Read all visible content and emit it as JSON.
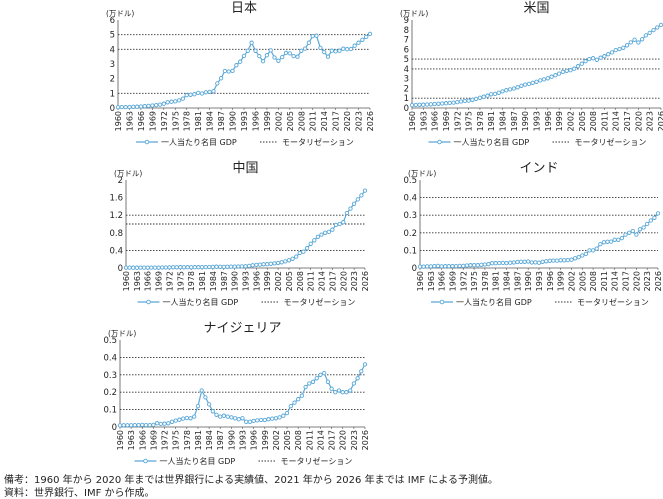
{
  "chart_data": [
    {
      "type": "line",
      "title": "日本",
      "ylabel": "(万ドル)",
      "ylim": [
        0,
        6
      ],
      "yticks": [
        0,
        1,
        2,
        3,
        4,
        5,
        6
      ],
      "x_ticks": [
        "1960",
        "1963",
        "1966",
        "1969",
        "1972",
        "1975",
        "1978",
        "1981",
        "1984",
        "1987",
        "1990",
        "1993",
        "1996",
        "1999",
        "2002",
        "2005",
        "2008",
        "2011",
        "2014",
        "2017",
        "2020",
        "2023",
        "2026"
      ],
      "x_range": [
        1960,
        2026
      ],
      "grid": true,
      "legend_position": "bottom",
      "series": [
        {
          "name": "一人当たり名目 GDP",
          "x_start": 1960,
          "values": [
            0.05,
            0.06,
            0.06,
            0.07,
            0.08,
            0.09,
            0.1,
            0.12,
            0.14,
            0.17,
            0.2,
            0.23,
            0.29,
            0.39,
            0.43,
            0.45,
            0.52,
            0.64,
            0.88,
            0.9,
            0.94,
            1.03,
            0.99,
            1.07,
            1.1,
            1.14,
            1.68,
            2.03,
            2.52,
            2.49,
            2.53,
            2.92,
            3.16,
            3.55,
            3.9,
            4.45,
            3.9,
            3.54,
            3.19,
            3.6,
            3.93,
            3.44,
            3.22,
            3.47,
            3.76,
            3.72,
            3.54,
            3.5,
            3.9,
            4.05,
            4.45,
            4.9,
            4.93,
            4.1,
            3.81,
            3.5,
            3.91,
            3.86,
            3.91,
            4.04,
            4.01,
            4.02,
            4.25,
            4.45,
            4.65,
            4.85,
            5.05
          ]
        },
        {
          "name": "モータリゼーション",
          "style": "dotted",
          "values": [
            1.0,
            4.0,
            5.0
          ]
        }
      ]
    },
    {
      "type": "line",
      "title": "米国",
      "ylabel": "(万ドル)",
      "ylim": [
        0,
        9
      ],
      "yticks": [
        0,
        1,
        2,
        3,
        4,
        5,
        6,
        7,
        8,
        9
      ],
      "x_ticks": [
        "1960",
        "1963",
        "1966",
        "1969",
        "1972",
        "1975",
        "1978",
        "1981",
        "1984",
        "1987",
        "1990",
        "1993",
        "1996",
        "1999",
        "2002",
        "2005",
        "2008",
        "2011",
        "2014",
        "2017",
        "2020",
        "2023",
        "2026"
      ],
      "x_range": [
        1960,
        2026
      ],
      "grid": true,
      "legend_position": "bottom",
      "series": [
        {
          "name": "一人当たり名目 GDP",
          "x_start": 1960,
          "values": [
            0.3,
            0.31,
            0.33,
            0.34,
            0.36,
            0.38,
            0.41,
            0.43,
            0.46,
            0.49,
            0.52,
            0.55,
            0.6,
            0.66,
            0.72,
            0.76,
            0.84,
            0.93,
            1.04,
            1.16,
            1.26,
            1.4,
            1.44,
            1.55,
            1.7,
            1.82,
            1.9,
            1.99,
            2.12,
            2.27,
            2.39,
            2.46,
            2.58,
            2.68,
            2.82,
            2.92,
            3.04,
            3.2,
            3.35,
            3.52,
            3.69,
            3.8,
            3.87,
            4.02,
            4.27,
            4.53,
            4.79,
            5.0,
            5.09,
            4.93,
            5.14,
            5.3,
            5.5,
            5.69,
            5.92,
            6.02,
            6.16,
            6.41,
            6.71,
            6.97,
            6.7,
            7.03,
            7.43,
            7.68,
            7.97,
            8.23,
            8.5
          ]
        },
        {
          "name": "モータリゼーション",
          "style": "dotted",
          "values": [
            1.0,
            4.0,
            5.0
          ]
        }
      ]
    },
    {
      "type": "line",
      "title": "中国",
      "ylabel": "(万ドル)",
      "ylim": [
        0,
        2
      ],
      "yticks": [
        0,
        0.2,
        0.4,
        0.6,
        0.8,
        1,
        1.2,
        1.4,
        1.6,
        1.8,
        2
      ],
      "ytick_labels": [
        "0",
        "",
        "0.4",
        "",
        "0.8",
        "",
        "1.2",
        "",
        "1.6",
        "",
        "2"
      ],
      "x_ticks": [
        "1960",
        "1963",
        "1966",
        "1969",
        "1972",
        "1975",
        "1978",
        "1981",
        "1984",
        "1987",
        "1990",
        "1993",
        "1996",
        "1999",
        "2002",
        "2005",
        "2008",
        "2011",
        "2014",
        "2017",
        "2020",
        "2023",
        "2026"
      ],
      "x_range": [
        1960,
        2026
      ],
      "grid": true,
      "legend_position": "bottom",
      "series": [
        {
          "name": "一人当たり名目 GDP",
          "x_start": 1960,
          "values": [
            0.009,
            0.008,
            0.007,
            0.007,
            0.008,
            0.01,
            0.01,
            0.009,
            0.009,
            0.01,
            0.011,
            0.012,
            0.013,
            0.016,
            0.016,
            0.018,
            0.017,
            0.019,
            0.016,
            0.018,
            0.019,
            0.02,
            0.02,
            0.022,
            0.025,
            0.029,
            0.028,
            0.025,
            0.028,
            0.031,
            0.032,
            0.034,
            0.037,
            0.038,
            0.047,
            0.061,
            0.071,
            0.078,
            0.083,
            0.087,
            0.096,
            0.105,
            0.114,
            0.129,
            0.151,
            0.175,
            0.21,
            0.26,
            0.34,
            0.37,
            0.45,
            0.55,
            0.63,
            0.71,
            0.76,
            0.8,
            0.82,
            0.87,
            0.98,
            1.0,
            1.04,
            1.25,
            1.35,
            1.46,
            1.56,
            1.65,
            1.76
          ]
        },
        {
          "name": "モータリゼーション",
          "style": "dotted",
          "values": [
            0.4,
            1.0,
            1.2
          ]
        }
      ]
    },
    {
      "type": "line",
      "title": "インド",
      "ylabel": "(万ドル)",
      "ylim": [
        0,
        0.5
      ],
      "yticks": [
        0,
        0.05,
        0.1,
        0.15,
        0.2,
        0.25,
        0.3,
        0.35,
        0.4,
        0.45,
        0.5
      ],
      "ytick_labels": [
        "0",
        "",
        "0.1",
        "",
        "0.2",
        "",
        "0.3",
        "",
        "0.4",
        "",
        "0.5"
      ],
      "x_ticks": [
        "1960",
        "1963",
        "1966",
        "1969",
        "1972",
        "1975",
        "1978",
        "1981",
        "1984",
        "1987",
        "1990",
        "1993",
        "1996",
        "1999",
        "2002",
        "2005",
        "2008",
        "2011",
        "2014",
        "2017",
        "2020",
        "2023",
        "2026"
      ],
      "x_range": [
        1960,
        2026
      ],
      "grid": true,
      "legend_position": "bottom",
      "series": [
        {
          "name": "一人当たり名目 GDP",
          "x_start": 1960,
          "values": [
            0.008,
            0.008,
            0.009,
            0.009,
            0.011,
            0.012,
            0.009,
            0.01,
            0.01,
            0.011,
            0.011,
            0.012,
            0.012,
            0.014,
            0.016,
            0.016,
            0.016,
            0.018,
            0.02,
            0.022,
            0.027,
            0.027,
            0.028,
            0.029,
            0.028,
            0.03,
            0.031,
            0.034,
            0.035,
            0.035,
            0.037,
            0.031,
            0.032,
            0.03,
            0.035,
            0.038,
            0.041,
            0.042,
            0.042,
            0.044,
            0.044,
            0.045,
            0.047,
            0.055,
            0.062,
            0.071,
            0.08,
            0.1,
            0.1,
            0.11,
            0.136,
            0.146,
            0.149,
            0.15,
            0.16,
            0.16,
            0.17,
            0.19,
            0.2,
            0.21,
            0.19,
            0.22,
            0.23,
            0.25,
            0.27,
            0.285,
            0.31
          ]
        },
        {
          "name": "モータリゼーション",
          "style": "dotted",
          "values": [
            0.1,
            0.2,
            0.3,
            0.4
          ]
        }
      ]
    },
    {
      "type": "line",
      "title": "ナイジェリア",
      "ylabel": "(万ドル)",
      "ylim": [
        0,
        0.5
      ],
      "yticks": [
        0,
        0.05,
        0.1,
        0.15,
        0.2,
        0.25,
        0.3,
        0.35,
        0.4,
        0.45,
        0.5
      ],
      "ytick_labels": [
        "0",
        "",
        "0.1",
        "",
        "0.2",
        "",
        "0.3",
        "",
        "0.4",
        "",
        "0.5"
      ],
      "x_ticks": [
        "1960",
        "1963",
        "1966",
        "1969",
        "1972",
        "1975",
        "1978",
        "1981",
        "1984",
        "1987",
        "1990",
        "1993",
        "1996",
        "1999",
        "2002",
        "2005",
        "2008",
        "2011",
        "2014",
        "2017",
        "2020",
        "2023",
        "2026"
      ],
      "x_range": [
        1960,
        2026
      ],
      "grid": true,
      "legend_position": "bottom",
      "series": [
        {
          "name": "一人当たり名目 GDP",
          "x_start": 1960,
          "values": [
            0.009,
            0.01,
            0.01,
            0.01,
            0.011,
            0.011,
            0.012,
            0.011,
            0.011,
            0.012,
            0.022,
            0.018,
            0.019,
            0.021,
            0.03,
            0.037,
            0.042,
            0.048,
            0.052,
            0.05,
            0.06,
            0.12,
            0.21,
            0.17,
            0.13,
            0.09,
            0.07,
            0.06,
            0.065,
            0.06,
            0.055,
            0.05,
            0.045,
            0.05,
            0.03,
            0.03,
            0.035,
            0.038,
            0.04,
            0.04,
            0.045,
            0.048,
            0.05,
            0.055,
            0.065,
            0.08,
            0.12,
            0.14,
            0.16,
            0.18,
            0.23,
            0.25,
            0.26,
            0.28,
            0.3,
            0.31,
            0.26,
            0.22,
            0.2,
            0.21,
            0.2,
            0.2,
            0.21,
            0.25,
            0.28,
            0.32,
            0.36
          ]
        },
        {
          "name": "モータリゼーション",
          "style": "dotted",
          "values": [
            0.1,
            0.2,
            0.3,
            0.4
          ]
        }
      ]
    }
  ],
  "notes": {
    "line1": "備考：1960 年から 2020 年までは世界銀行による実績値、2021 年から 2026 年までは IMF による予測値。",
    "line2": "資料：世界銀行、IMF から作成。"
  },
  "colors": {
    "series_line": "#5aa8d8",
    "marker_fill": "#ffffff",
    "grid": "#333333",
    "axis": "#555555"
  }
}
